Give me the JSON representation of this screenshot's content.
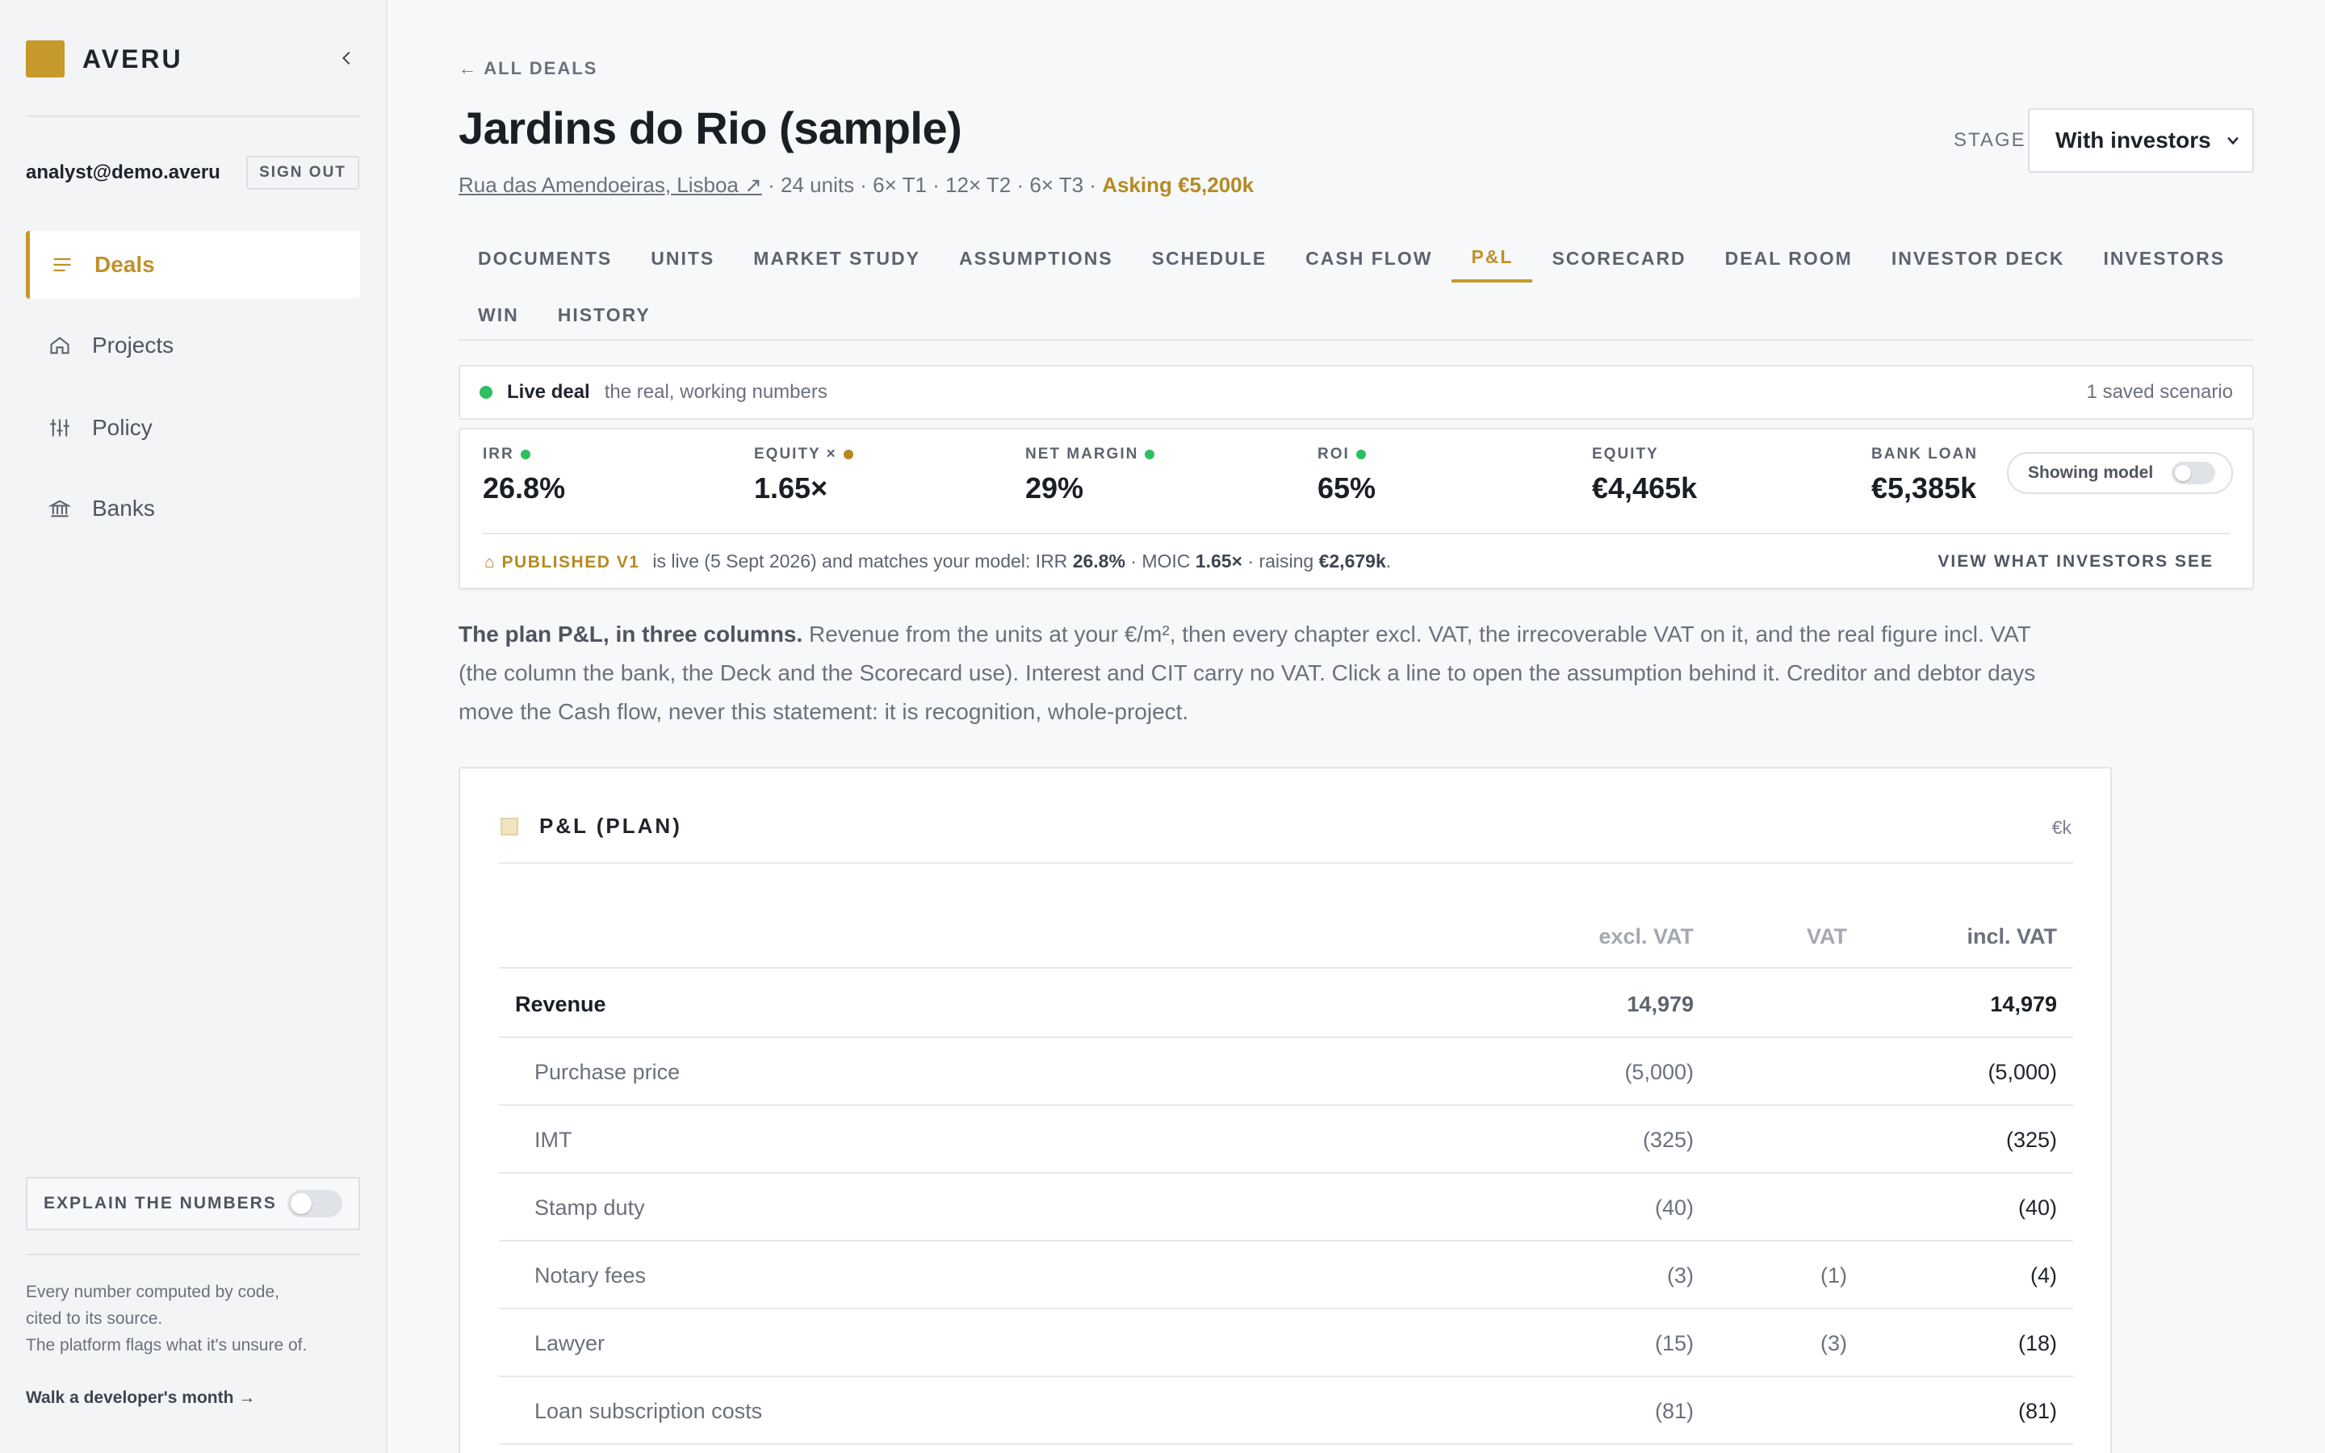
{
  "brand": {
    "name": "AVERU",
    "logo_color": "#c6992c"
  },
  "sidebar": {
    "collapse_icon": "chevron-left-icon",
    "user_email": "analyst@demo.averu",
    "sign_out_label": "SIGN OUT",
    "items": [
      {
        "label": "Deals",
        "icon": "list-icon",
        "active": true
      },
      {
        "label": "Projects",
        "icon": "home-icon",
        "active": false
      },
      {
        "label": "Policy",
        "icon": "sliders-icon",
        "active": false
      },
      {
        "label": "Banks",
        "icon": "bank-icon",
        "active": false
      }
    ],
    "explain_label": "EXPLAIN THE NUMBERS",
    "explain_on": false,
    "footer_lines": [
      "Every number computed by code,",
      "cited to its source.",
      "The platform flags what it's unsure of."
    ],
    "walk_link": "Walk a developer's month →"
  },
  "header": {
    "back_label": "← ALL DEALS",
    "title": "Jardins do Rio (sample)",
    "address": "Rua das Amendoeiras, Lisboa ↗",
    "meta": " · 24 units · 6× T1 · 12× T2 · 6× T3 · ",
    "asking": "Asking €5,200k",
    "stage_label": "STAGE",
    "stage_value": "With investors"
  },
  "tabs": {
    "row1": [
      "DOCUMENTS",
      "UNITS",
      "MARKET STUDY",
      "ASSUMPTIONS",
      "SCHEDULE",
      "CASH FLOW",
      "P&L",
      "SCORECARD",
      "DEAL ROOM",
      "INVESTOR DECK",
      "INVESTORS"
    ],
    "row2": [
      "WIN",
      "HISTORY"
    ],
    "active": "P&L"
  },
  "live_bar": {
    "status": "Live deal",
    "description": "the real, working numbers",
    "saved": "1 saved scenario",
    "status_color": "#2fbe62"
  },
  "metrics": {
    "items": [
      {
        "label": "IRR",
        "value": "26.8%",
        "dot_color": "#2fbe62"
      },
      {
        "label": "EQUITY ×",
        "value": "1.65×",
        "dot_color": "#b58a22"
      },
      {
        "label": "NET MARGIN",
        "value": "29%",
        "dot_color": "#2fbe62"
      },
      {
        "label": "ROI",
        "value": "65%",
        "dot_color": "#2fbe62"
      },
      {
        "label": "EQUITY",
        "value": "€4,465k"
      },
      {
        "label": "BANK LOAN",
        "value": "€5,385k"
      }
    ],
    "showing_model_label": "Showing model",
    "published_tag": "⌂ PUBLISHED V1",
    "published_text_1": "is live (5 Sept 2026) and matches your model: IRR ",
    "published_irr": "26.8%",
    "published_text_2": " · MOIC ",
    "published_moic": "1.65×",
    "published_text_3": " · raising ",
    "published_raising": "€2,679k",
    "published_text_4": ".",
    "view_investors_label": "VIEW WHAT INVESTORS SEE"
  },
  "explanation": {
    "lead": "The plan P&L, in three columns.",
    "body": " Revenue from the units at your €/m², then every chapter excl. VAT, the irrecoverable VAT on it, and the real figure incl. VAT (the column the bank, the Deck and the Scorecard use). Interest and CIT carry no VAT. Click a line to open the assumption behind it. Creditor and debtor days move the Cash flow, never this statement: it is recognition, whole-project."
  },
  "pnl": {
    "title": "P&L (PLAN)",
    "unit": "€k",
    "headers": {
      "excl": "excl. VAT",
      "vat": "VAT",
      "incl": "incl. VAT"
    },
    "rows": [
      {
        "label": "Revenue",
        "excl": "14,979",
        "vat": "",
        "incl": "14,979"
      },
      {
        "label": "Purchase price",
        "excl": "(5,000)",
        "vat": "",
        "incl": "(5,000)"
      },
      {
        "label": "IMT",
        "excl": "(325)",
        "vat": "",
        "incl": "(325)"
      },
      {
        "label": "Stamp duty",
        "excl": "(40)",
        "vat": "",
        "incl": "(40)"
      },
      {
        "label": "Notary fees",
        "excl": "(3)",
        "vat": "(1)",
        "incl": "(4)"
      },
      {
        "label": "Lawyer",
        "excl": "(15)",
        "vat": "(3)",
        "incl": "(18)"
      },
      {
        "label": "Loan subscription costs",
        "excl": "(81)",
        "vat": "",
        "incl": "(81)"
      }
    ]
  }
}
